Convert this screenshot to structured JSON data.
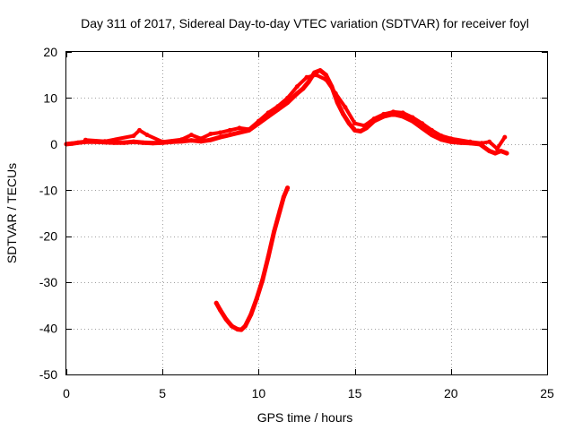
{
  "chart_data": {
    "type": "line",
    "title": "Day 311 of 2017, Sidereal Day-to-day VTEC variation (SDTVAR) for receiver foyl",
    "xlabel": "GPS time / hours",
    "ylabel": "SDTVAR / TECUs",
    "xlim": [
      0,
      25
    ],
    "ylim": [
      -50,
      20
    ],
    "xticks": [
      0,
      5,
      10,
      15,
      20,
      25
    ],
    "yticks": [
      -50,
      -40,
      -30,
      -20,
      -10,
      0,
      10,
      20
    ],
    "grid": true,
    "series_color": "#ff0000",
    "series": [
      {
        "name": "main-trace",
        "x": [
          0.0,
          0.3,
          0.6,
          1.0,
          1.5,
          2.0,
          2.5,
          3.0,
          3.5,
          4.0,
          4.5,
          5.0,
          5.5,
          6.0,
          6.5,
          7.0,
          7.5,
          8.0,
          8.5,
          9.0,
          9.5,
          10.0,
          10.5,
          11.0,
          11.5,
          12.0,
          12.3,
          12.6,
          12.9,
          13.2,
          13.5,
          13.8,
          14.1,
          14.4,
          14.7,
          15.0,
          15.3,
          15.6,
          16.0,
          16.5,
          17.0,
          17.5,
          18.0,
          18.5,
          19.0,
          19.5,
          20.0,
          20.5,
          21.0,
          21.5,
          22.0,
          22.3,
          22.6,
          22.9
        ],
        "y": [
          0.0,
          0.1,
          0.3,
          0.5,
          0.5,
          0.4,
          0.3,
          0.3,
          0.5,
          0.3,
          0.2,
          0.3,
          0.5,
          0.6,
          0.8,
          0.6,
          0.9,
          1.5,
          2.0,
          2.5,
          3.0,
          4.5,
          6.0,
          7.5,
          9.0,
          11.0,
          12.0,
          13.5,
          15.5,
          16.0,
          15.0,
          12.5,
          9.0,
          6.5,
          4.5,
          3.0,
          2.8,
          3.5,
          5.0,
          6.0,
          6.5,
          6.0,
          5.0,
          3.5,
          2.0,
          1.0,
          0.5,
          0.3,
          0.2,
          0.0,
          -1.5,
          -2.0,
          -1.5,
          -2.0
        ]
      },
      {
        "name": "main-trace-spread",
        "x": [
          1.0,
          2.0,
          3.5,
          3.8,
          4.2,
          5.0,
          6.0,
          6.5,
          7.0,
          7.5,
          8.0,
          8.5,
          9.0,
          9.5,
          10.0,
          10.5,
          11.0,
          11.5,
          12.0,
          12.5,
          13.0,
          13.5,
          14.0,
          14.5,
          15.0,
          15.5,
          16.0,
          16.5,
          17.0,
          17.5,
          18.0,
          18.5,
          19.0,
          19.5,
          20.0,
          21.0,
          21.6,
          22.0,
          22.4,
          22.8
        ],
        "y": [
          0.9,
          0.6,
          1.8,
          3.0,
          2.0,
          0.5,
          1.0,
          2.0,
          1.2,
          2.2,
          2.5,
          3.0,
          3.5,
          3.2,
          5.0,
          6.8,
          8.2,
          10.0,
          12.5,
          14.5,
          15.0,
          14.0,
          11.0,
          8.0,
          4.5,
          4.0,
          5.5,
          6.5,
          7.0,
          6.8,
          5.8,
          4.5,
          3.0,
          1.8,
          1.2,
          0.5,
          0.2,
          0.5,
          -1.0,
          1.5
        ]
      },
      {
        "name": "dip-arc",
        "x": [
          7.8,
          8.0,
          8.3,
          8.6,
          8.9,
          9.1,
          9.3,
          9.6,
          9.9,
          10.2,
          10.5,
          10.8,
          11.1,
          11.3,
          11.5
        ],
        "y": [
          -34.5,
          -36.0,
          -38.0,
          -39.5,
          -40.2,
          -40.3,
          -39.5,
          -37.0,
          -33.5,
          -29.5,
          -24.5,
          -19.0,
          -14.5,
          -11.5,
          -9.5
        ]
      }
    ]
  }
}
